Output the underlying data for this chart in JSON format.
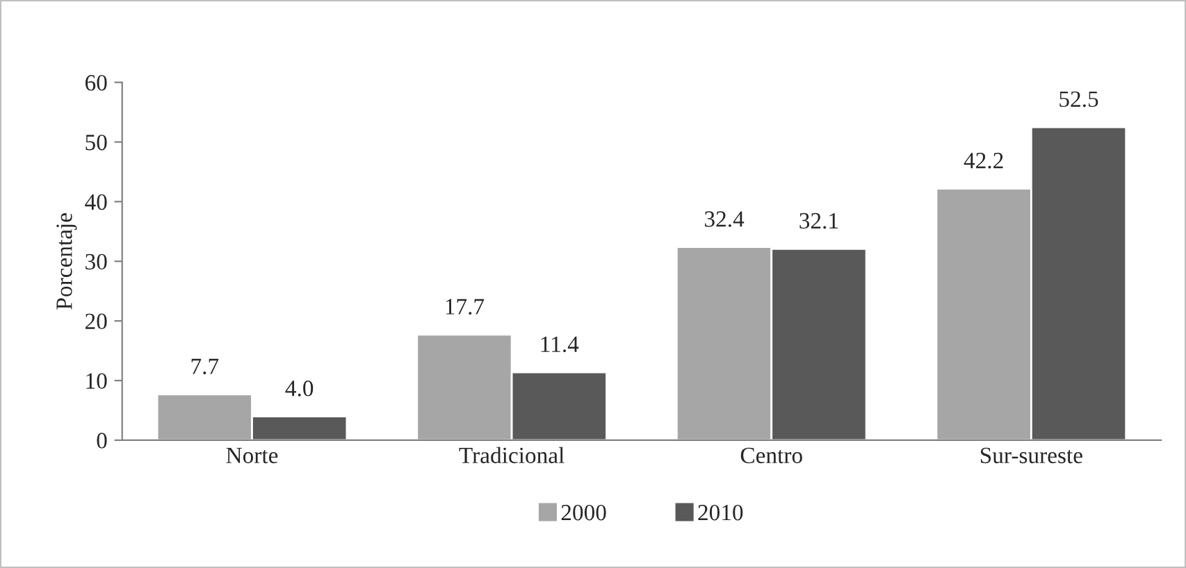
{
  "chart_data": {
    "type": "bar",
    "ylabel": "Porcentaje",
    "categories": [
      "Norte",
      "Tradicional",
      "Centro",
      "Sur-sureste"
    ],
    "series": [
      {
        "name": "2000",
        "color": "#a6a6a6",
        "values": [
          7.7,
          17.7,
          32.4,
          42.2
        ],
        "value_labels": [
          "7.7",
          "17.7",
          "32.4",
          "42.2"
        ]
      },
      {
        "name": "2010",
        "color": "#595959",
        "values": [
          4.0,
          11.4,
          32.1,
          52.5
        ],
        "value_labels": [
          "4.0",
          "11.4",
          "32.1",
          "52.5"
        ]
      }
    ],
    "ylim": [
      0,
      60
    ],
    "yticks": [
      0,
      10,
      20,
      30,
      40,
      50,
      60
    ],
    "grid": false,
    "legend": "bottom"
  }
}
